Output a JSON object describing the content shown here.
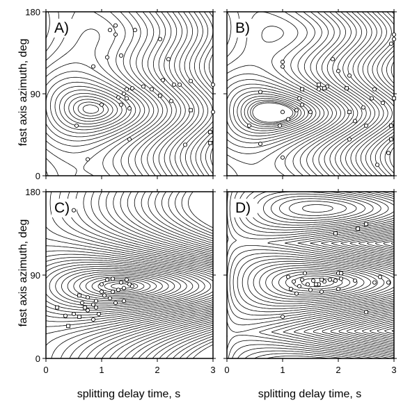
{
  "figure": {
    "ylabel": "fast axis azimuth, deg",
    "xlabel": "splitting delay time, s"
  },
  "chart_data": [
    {
      "type": "contour",
      "panel": "A)",
      "xlim": [
        0,
        3
      ],
      "ylim": [
        0,
        180
      ],
      "xticks": [
        0,
        1,
        2,
        3
      ],
      "yticks": [
        0,
        90,
        180
      ],
      "minimum": {
        "x": 0.8,
        "y": 78
      },
      "circles": [
        [
          1.15,
          160
        ],
        [
          1.25,
          155
        ],
        [
          1.1,
          130
        ],
        [
          1.35,
          132
        ],
        [
          1.6,
          160
        ],
        [
          2.05,
          150
        ],
        [
          2.2,
          128
        ],
        [
          2.1,
          105
        ],
        [
          2.3,
          100
        ],
        [
          2.4,
          100
        ],
        [
          2.6,
          104
        ],
        [
          3.0,
          100
        ],
        [
          1.45,
          95
        ],
        [
          1.55,
          96
        ],
        [
          1.75,
          98
        ],
        [
          1.9,
          95
        ],
        [
          1.4,
          90
        ],
        [
          1.3,
          86
        ],
        [
          1.45,
          85
        ],
        [
          1.35,
          78
        ],
        [
          1.5,
          74
        ],
        [
          1.0,
          78
        ],
        [
          0.55,
          55
        ],
        [
          2.5,
          34
        ],
        [
          1.5,
          40
        ],
        [
          0.75,
          18
        ],
        [
          2.25,
          82
        ],
        [
          3.0,
          70
        ],
        [
          1.25,
          165
        ],
        [
          0.85,
          120
        ]
      ],
      "squares": [
        [
          2.05,
          88
        ],
        [
          2.95,
          48
        ],
        [
          2.6,
          72
        ],
        [
          2.95,
          36
        ]
      ]
    },
    {
      "type": "contour",
      "panel": "B)",
      "xlim": [
        0,
        3
      ],
      "ylim": [
        0,
        180
      ],
      "xticks": [
        0,
        1,
        2,
        3
      ],
      "yticks": [
        0,
        90,
        180
      ],
      "minimum": {
        "x": 0.75,
        "y": 72
      },
      "circles": [
        [
          1.0,
          125
        ],
        [
          1.0,
          120
        ],
        [
          0.6,
          92
        ],
        [
          1.3,
          85
        ],
        [
          1.35,
          78
        ],
        [
          1.25,
          72
        ],
        [
          1.0,
          70
        ],
        [
          1.1,
          62
        ],
        [
          0.95,
          55
        ],
        [
          0.4,
          55
        ],
        [
          0.6,
          35
        ],
        [
          1.9,
          128
        ],
        [
          2.0,
          115
        ],
        [
          2.2,
          110
        ],
        [
          1.8,
          98
        ],
        [
          1.65,
          95
        ],
        [
          2.3,
          60
        ],
        [
          2.5,
          55
        ],
        [
          2.65,
          95
        ],
        [
          2.6,
          85
        ],
        [
          2.9,
          25
        ],
        [
          3.0,
          155
        ],
        [
          3.0,
          150
        ],
        [
          2.95,
          145
        ],
        [
          1.0,
          20
        ],
        [
          2.7,
          12
        ],
        [
          2.2,
          40
        ],
        [
          2.45,
          75
        ],
        [
          2.8,
          80
        ],
        [
          1.5,
          70
        ]
      ],
      "squares": [
        [
          1.35,
          95
        ],
        [
          1.75,
          96
        ],
        [
          2.15,
          96
        ],
        [
          1.65,
          100
        ],
        [
          2.2,
          70
        ],
        [
          2.95,
          55
        ],
        [
          3.0,
          85
        ],
        [
          2.95,
          40
        ]
      ]
    },
    {
      "type": "contour",
      "panel": "C)",
      "xlim": [
        0,
        3
      ],
      "ylim": [
        0,
        180
      ],
      "xticks": [
        0,
        1,
        2,
        3
      ],
      "yticks": [
        0,
        90,
        180
      ],
      "minimum": {
        "x": 1.35,
        "y": 78
      },
      "circles": [
        [
          0.5,
          160
        ],
        [
          1.1,
          85
        ],
        [
          1.2,
          86
        ],
        [
          1.35,
          82
        ],
        [
          1.45,
          85
        ],
        [
          1.5,
          80
        ],
        [
          1.4,
          76
        ],
        [
          1.3,
          74
        ],
        [
          1.2,
          72
        ],
        [
          1.0,
          72
        ],
        [
          1.05,
          68
        ],
        [
          1.15,
          65
        ],
        [
          0.9,
          62
        ],
        [
          0.85,
          58
        ],
        [
          0.9,
          55
        ],
        [
          0.75,
          52
        ],
        [
          0.5,
          48
        ],
        [
          0.35,
          46
        ],
        [
          1.4,
          62
        ],
        [
          1.25,
          60
        ],
        [
          0.75,
          66
        ],
        [
          0.65,
          60
        ],
        [
          0.95,
          48
        ],
        [
          0.85,
          42
        ],
        [
          1.55,
          78
        ],
        [
          1.0,
          80
        ]
      ],
      "squares": [
        [
          0.6,
          68
        ],
        [
          0.7,
          55
        ],
        [
          0.2,
          55
        ],
        [
          0.4,
          35
        ],
        [
          0.6,
          45
        ]
      ]
    },
    {
      "type": "contour",
      "panel": "D)",
      "xlim": [
        0,
        3
      ],
      "ylim": [
        0,
        180
      ],
      "xticks": [
        0,
        1,
        2,
        3
      ],
      "yticks": [
        0,
        90,
        180
      ],
      "minimum": {
        "x": 1.6,
        "y": 82
      },
      "secondary_minimum": {
        "x": 1.6,
        "y": 162
      },
      "circles": [
        [
          1.1,
          88
        ],
        [
          1.2,
          83
        ],
        [
          1.35,
          85
        ],
        [
          1.45,
          80
        ],
        [
          1.55,
          84
        ],
        [
          1.65,
          80
        ],
        [
          1.75,
          83
        ],
        [
          1.85,
          85
        ],
        [
          1.95,
          84
        ],
        [
          2.05,
          86
        ],
        [
          2.3,
          84
        ],
        [
          1.3,
          78
        ],
        [
          1.5,
          74
        ],
        [
          1.7,
          72
        ],
        [
          1.25,
          70
        ],
        [
          1.15,
          75
        ],
        [
          2.0,
          75
        ],
        [
          2.65,
          82
        ],
        [
          2.75,
          88
        ],
        [
          2.9,
          82
        ],
        [
          1.0,
          45
        ],
        [
          2.5,
          50
        ],
        [
          2.0,
          92
        ],
        [
          1.4,
          92
        ]
      ],
      "squares": [
        [
          1.7,
          85
        ],
        [
          1.95,
          135
        ],
        [
          2.35,
          140
        ],
        [
          2.5,
          145
        ],
        [
          2.05,
          92
        ],
        [
          1.6,
          80
        ]
      ]
    }
  ]
}
